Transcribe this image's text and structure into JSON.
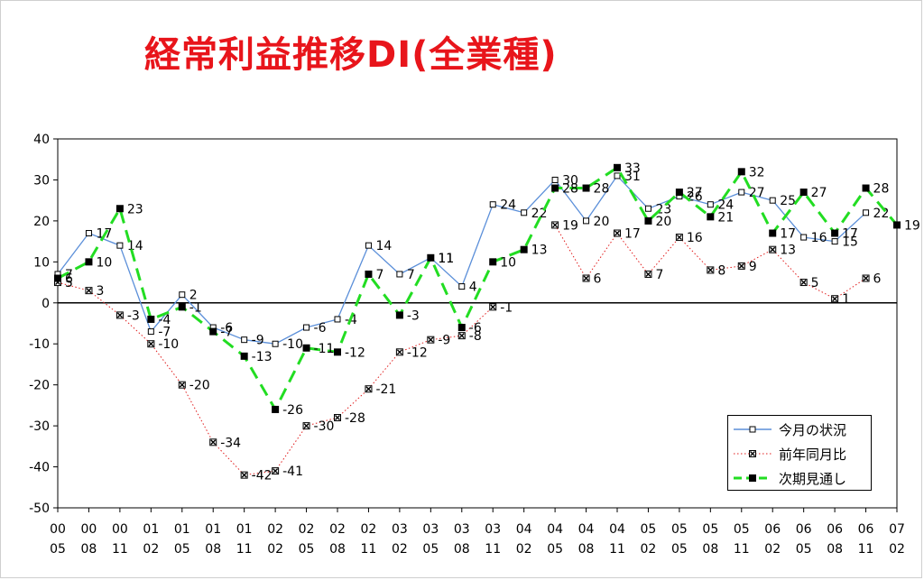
{
  "title": "経常利益推移DI(全業種)",
  "chart_data": {
    "type": "line",
    "ylim": [
      -50,
      40
    ],
    "yticks": [
      40,
      30,
      20,
      10,
      0,
      -10,
      -20,
      -30,
      -40,
      -50
    ],
    "categories": [
      [
        "00",
        "05"
      ],
      [
        "00",
        "08"
      ],
      [
        "00",
        "11"
      ],
      [
        "01",
        "02"
      ],
      [
        "01",
        "05"
      ],
      [
        "01",
        "08"
      ],
      [
        "01",
        "11"
      ],
      [
        "02",
        "02"
      ],
      [
        "02",
        "05"
      ],
      [
        "02",
        "08"
      ],
      [
        "02",
        "11"
      ],
      [
        "03",
        "02"
      ],
      [
        "03",
        "05"
      ],
      [
        "03",
        "08"
      ],
      [
        "03",
        "11"
      ],
      [
        "04",
        "02"
      ],
      [
        "04",
        "05"
      ],
      [
        "04",
        "08"
      ],
      [
        "04",
        "11"
      ],
      [
        "05",
        "02"
      ],
      [
        "05",
        "05"
      ],
      [
        "05",
        "08"
      ],
      [
        "05",
        "11"
      ],
      [
        "06",
        "02"
      ],
      [
        "06",
        "05"
      ],
      [
        "06",
        "08"
      ],
      [
        "06",
        "11"
      ],
      [
        "07",
        "02"
      ]
    ],
    "legend_position": "bottom-right",
    "grid": false,
    "series": [
      {
        "name": "今月の状況",
        "color": "#5b8fd9",
        "style": "solid-open-square",
        "values": [
          7,
          17,
          14,
          -7,
          2,
          -6,
          -9,
          -10,
          -6,
          -4,
          14,
          7,
          11,
          4,
          24,
          22,
          30,
          20,
          31,
          23,
          26,
          24,
          27,
          25,
          16,
          15,
          22,
          null
        ],
        "labels": [
          "7",
          "17",
          "14",
          "-7",
          "2",
          "-6",
          "-9",
          "-10",
          "-6",
          "-4",
          "14",
          "7",
          "11",
          "4",
          "24",
          "22",
          "30",
          "20",
          "31",
          "23",
          "26",
          "24",
          "27",
          "25",
          "16",
          "15",
          "22",
          ""
        ]
      },
      {
        "name": "前年同月比",
        "color": "#e11d1d",
        "style": "dotted-x-square",
        "values": [
          5,
          3,
          -3,
          -10,
          -20,
          -34,
          -42,
          -41,
          -30,
          -28,
          -21,
          -12,
          -9,
          -8,
          -1,
          null,
          19,
          6,
          17,
          7,
          16,
          8,
          9,
          13,
          5,
          1,
          6,
          null
        ],
        "labels": [
          "5",
          "3",
          "-3",
          "-10",
          "-20",
          "-34",
          "-42",
          "-41",
          "-30",
          "-28",
          "-21",
          "-12",
          "-9",
          "-8",
          "-1",
          "",
          "19",
          "6",
          "17",
          "7",
          "16",
          "8",
          "9",
          "13",
          "5",
          "1",
          "6",
          ""
        ]
      },
      {
        "name": "次期見通し",
        "color": "#22dd22",
        "style": "dashed-filled-square",
        "values": [
          6,
          10,
          23,
          -4,
          -1,
          -7,
          -13,
          -26,
          -11,
          -12,
          7,
          -3,
          11,
          -6,
          10,
          13,
          28,
          28,
          33,
          20,
          27,
          21,
          32,
          17,
          27,
          17,
          28,
          19
        ],
        "labels": [
          "6",
          "10",
          "23",
          "-4",
          "-1",
          "-7",
          "-13",
          "-26",
          "-11",
          "-12",
          "7",
          "-3",
          "11",
          "-6",
          "10",
          "13",
          "28",
          "28",
          "33",
          "20",
          "27",
          "21",
          "32",
          "17",
          "27",
          "17",
          "28",
          "19"
        ]
      }
    ]
  }
}
